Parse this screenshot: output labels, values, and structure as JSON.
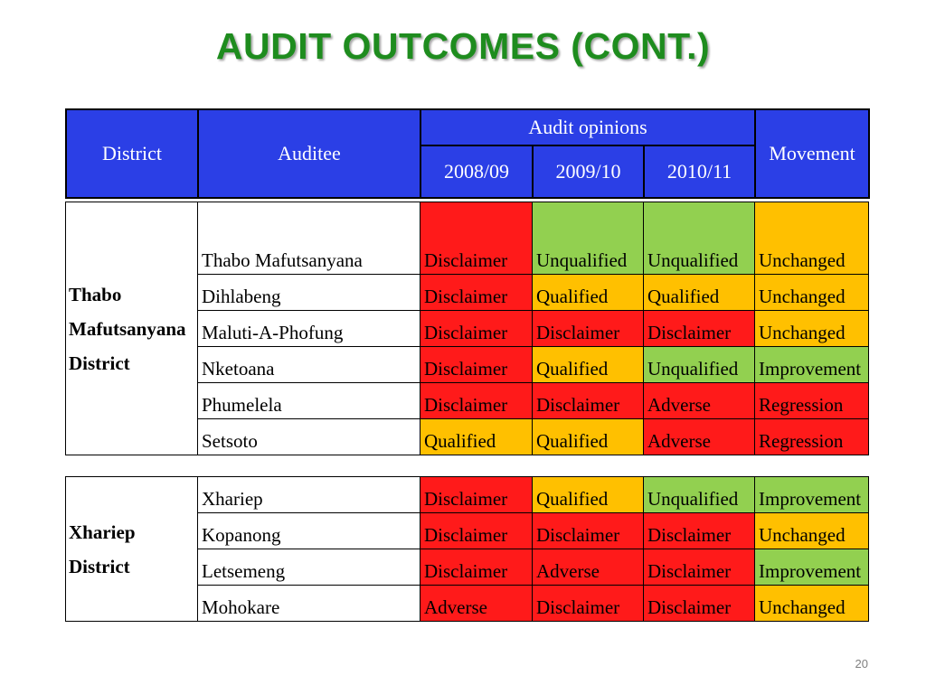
{
  "title": "AUDIT OUTCOMES (CONT.)",
  "page_number": "20",
  "header": {
    "district": "District",
    "auditee": "Auditee",
    "audit_opinions": "Audit opinions",
    "years": [
      "2008/09",
      "2009/10",
      "2010/11"
    ],
    "movement": "Movement"
  },
  "colors": {
    "header_blue": "#2b3fe6",
    "disclaimer_adverse_red": "#ff1a1a",
    "qualified_orange": "#ffc000",
    "unqualified_green": "#92d050",
    "title_green": "#1e8c1e"
  },
  "groups": [
    {
      "district": "Thabo Mafutsanyana District",
      "district_lines": [
        "Thabo",
        "Mafutsanyana",
        "District"
      ],
      "rows": [
        {
          "auditee": "Thabo Mafutsanyana",
          "y2008": "Disclaimer",
          "y2009": "Unqualified",
          "y2010": "Unqualified",
          "movement": "Unchanged",
          "c2008": "red",
          "c2009": "grn",
          "c2010": "grn",
          "cmov": "yel",
          "tall": true
        },
        {
          "auditee": "Dihlabeng",
          "y2008": "Disclaimer",
          "y2009": "Qualified",
          "y2010": "Qualified",
          "movement": "Unchanged",
          "c2008": "red",
          "c2009": "yel",
          "c2010": "yel",
          "cmov": "yel"
        },
        {
          "auditee": "Maluti-A-Phofung",
          "y2008": "Disclaimer",
          "y2009": "Disclaimer",
          "y2010": "Disclaimer",
          "movement": "Unchanged",
          "c2008": "red",
          "c2009": "red",
          "c2010": "red",
          "cmov": "yel"
        },
        {
          "auditee": "Nketoana",
          "y2008": "Disclaimer",
          "y2009": "Qualified",
          "y2010": "Unqualified",
          "movement": "Improvement",
          "c2008": "red",
          "c2009": "yel",
          "c2010": "grn",
          "cmov": "grn"
        },
        {
          "auditee": "Phumelela",
          "y2008": "Disclaimer",
          "y2009": "Disclaimer",
          "y2010": "Adverse",
          "movement": "Regression",
          "c2008": "red",
          "c2009": "red",
          "c2010": "red",
          "cmov": "red"
        },
        {
          "auditee": "Setsoto",
          "y2008": "Qualified",
          "y2009": "Qualified",
          "y2010": "Adverse",
          "movement": "Regression",
          "c2008": "yel",
          "c2009": "yel",
          "c2010": "red",
          "cmov": "red"
        }
      ]
    },
    {
      "district": "Xhariep District",
      "district_lines": [
        "Xhariep",
        "District"
      ],
      "rows": [
        {
          "auditee": "Xhariep",
          "y2008": "Disclaimer",
          "y2009": "Qualified",
          "y2010": "Unqualified",
          "movement": "Improvement",
          "c2008": "red",
          "c2009": "yel",
          "c2010": "grn",
          "cmov": "grn"
        },
        {
          "auditee": "Kopanong",
          "y2008": "Disclaimer",
          "y2009": "Disclaimer",
          "y2010": "Disclaimer",
          "movement": "Unchanged",
          "c2008": "red",
          "c2009": "red",
          "c2010": "red",
          "cmov": "yel"
        },
        {
          "auditee": "Letsemeng",
          "y2008": "Disclaimer",
          "y2009": "Adverse",
          "y2010": "Disclaimer",
          "movement": "Improvement",
          "c2008": "red",
          "c2009": "red",
          "c2010": "red",
          "cmov": "grn"
        },
        {
          "auditee": "Mohokare",
          "y2008": "Adverse",
          "y2009": "Disclaimer",
          "y2010": "Disclaimer",
          "movement": "Unchanged",
          "c2008": "red",
          "c2009": "red",
          "c2010": "red",
          "cmov": "yel"
        }
      ]
    }
  ]
}
